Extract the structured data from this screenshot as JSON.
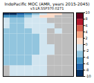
{
  "chart_data": {
    "type": "heatmap",
    "title": "IndoPacific MOC (AMR, years 2015-2045)",
    "subtitle": "v3.LR.SSP370.0271",
    "xlim": [
      -34,
      60
    ],
    "ylim": [
      6000,
      0
    ],
    "tick_labels": false,
    "x_edges": [
      -34,
      -25,
      -15,
      -5,
      5,
      15,
      25,
      35,
      45,
      60
    ],
    "y_edges": [
      0,
      250,
      500,
      1000,
      1500,
      2000,
      3000,
      4000,
      5000,
      6000
    ],
    "cells": [
      [
        -9,
        -9,
        -7,
        -5,
        -3,
        -1,
        0.5,
        1,
        null
      ],
      [
        -5,
        -6,
        -5,
        -3,
        -1,
        0.5,
        1,
        null,
        null
      ],
      [
        -2,
        -3,
        -3,
        -2,
        -1,
        -0.5,
        null,
        null,
        null
      ],
      [
        -2,
        -2.5,
        -2.5,
        -2,
        -1.5,
        -1,
        -0.5,
        null,
        null
      ],
      [
        -2.5,
        -3,
        -3,
        -2.5,
        -2,
        -1.5,
        null,
        -0.5,
        null
      ],
      [
        -3,
        -3.5,
        -3.5,
        -3,
        -2.5,
        -2,
        null,
        null,
        null
      ],
      [
        -3,
        -3.5,
        -3.5,
        -3,
        -2.5,
        -1.5,
        -0.5,
        null,
        null
      ],
      [
        -2.5,
        -3,
        -3,
        -2.5,
        -2,
        -1,
        null,
        null,
        null
      ],
      [
        null,
        -2,
        -2,
        -1.5,
        -1,
        -0.5,
        null,
        null,
        null
      ]
    ],
    "colorbar_range": [
      -10,
      10
    ],
    "colorbar_ticks": [
      -10,
      -8,
      -6,
      -4,
      -2,
      0,
      2,
      4,
      6,
      8,
      10
    ]
  }
}
